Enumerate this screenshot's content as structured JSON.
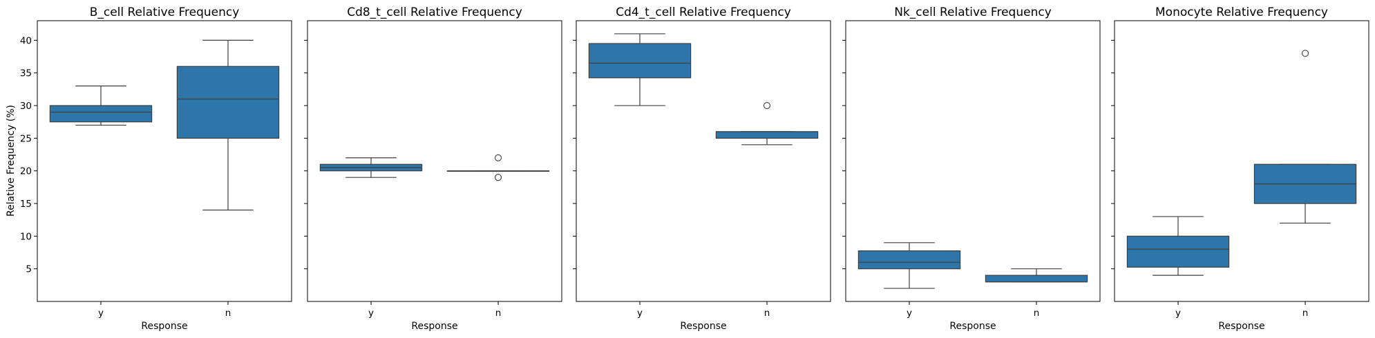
{
  "chart_data": {
    "type": "box",
    "colors": {
      "box_fill": "#2e75a9",
      "box_edge": "#3d3d3d",
      "axes": "#000000",
      "background": "#ffffff"
    },
    "shared_y": {
      "label": "Relative Frequency (%)",
      "ylim": [
        0,
        43
      ],
      "ticks": [
        5,
        10,
        15,
        20,
        25,
        30,
        35,
        40
      ]
    },
    "grid": false,
    "panels": [
      {
        "title": "B_cell Relative Frequency",
        "xlabel": "Response",
        "categories": [
          "y",
          "n"
        ],
        "boxes": [
          {
            "whisker_low": 27,
            "q1": 27.5,
            "median": 29,
            "q3": 30,
            "whisker_high": 33,
            "outliers": []
          },
          {
            "whisker_low": 14,
            "q1": 25,
            "median": 31,
            "q3": 36,
            "whisker_high": 40,
            "outliers": []
          }
        ]
      },
      {
        "title": "Cd8_t_cell Relative Frequency",
        "xlabel": "Response",
        "categories": [
          "y",
          "n"
        ],
        "boxes": [
          {
            "whisker_low": 19,
            "q1": 20,
            "median": 20.5,
            "q3": 21,
            "whisker_high": 22,
            "outliers": []
          },
          {
            "whisker_low": 20,
            "q1": 20,
            "median": 20,
            "q3": 20,
            "whisker_high": 20,
            "outliers": [
              22,
              19
            ]
          }
        ]
      },
      {
        "title": "Cd4_t_cell Relative Frequency",
        "xlabel": "Response",
        "categories": [
          "y",
          "n"
        ],
        "boxes": [
          {
            "whisker_low": 30,
            "q1": 34.25,
            "median": 36.5,
            "q3": 39.5,
            "whisker_high": 41,
            "outliers": []
          },
          {
            "whisker_low": 24,
            "q1": 25,
            "median": 26,
            "q3": 26,
            "whisker_high": 26,
            "outliers": [
              30
            ]
          }
        ]
      },
      {
        "title": "Nk_cell Relative Frequency",
        "xlabel": "Response",
        "categories": [
          "y",
          "n"
        ],
        "boxes": [
          {
            "whisker_low": 2,
            "q1": 5,
            "median": 6,
            "q3": 7.75,
            "whisker_high": 9,
            "outliers": []
          },
          {
            "whisker_low": 3,
            "q1": 3,
            "median": 3,
            "q3": 4,
            "whisker_high": 5,
            "outliers": []
          }
        ]
      },
      {
        "title": "Monocyte Relative Frequency",
        "xlabel": "Response",
        "categories": [
          "y",
          "n"
        ],
        "boxes": [
          {
            "whisker_low": 4,
            "q1": 5.25,
            "median": 8,
            "q3": 10,
            "whisker_high": 13,
            "outliers": []
          },
          {
            "whisker_low": 12,
            "q1": 15,
            "median": 18,
            "q3": 21,
            "whisker_high": 21,
            "outliers": [
              38
            ]
          }
        ]
      }
    ]
  }
}
